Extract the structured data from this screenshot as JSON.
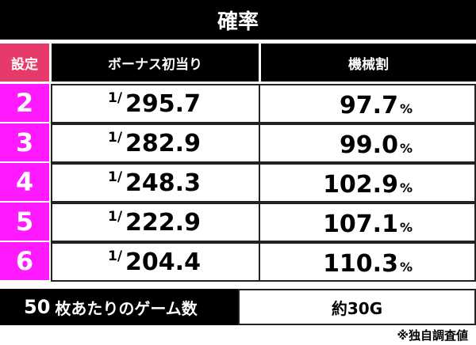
{
  "title": "確率",
  "table": {
    "header": [
      "設定",
      "ボーナス初当り",
      "機械割"
    ],
    "rows": [
      {
        "setting": "2",
        "bonus_prefix": "1/",
        "bonus": "295.7",
        "payout": "97.7",
        "payout_unit": "%"
      },
      {
        "setting": "3",
        "bonus_prefix": "1/",
        "bonus": "282.9",
        "payout": "99.0",
        "payout_unit": "%"
      },
      {
        "setting": "4",
        "bonus_prefix": "1/",
        "bonus": "248.3",
        "payout": "102.9",
        "payout_unit": "%"
      },
      {
        "setting": "5",
        "bonus_prefix": "1/",
        "bonus": "222.9",
        "payout": "107.1",
        "payout_unit": "%"
      },
      {
        "setting": "6",
        "bonus_prefix": "1/",
        "bonus": "204.4",
        "payout": "110.3",
        "payout_unit": "%"
      }
    ]
  },
  "games": {
    "label_number": "50",
    "label": "枚あたりのゲーム数",
    "value": "約30G"
  },
  "footnote": "※独自調査値"
}
